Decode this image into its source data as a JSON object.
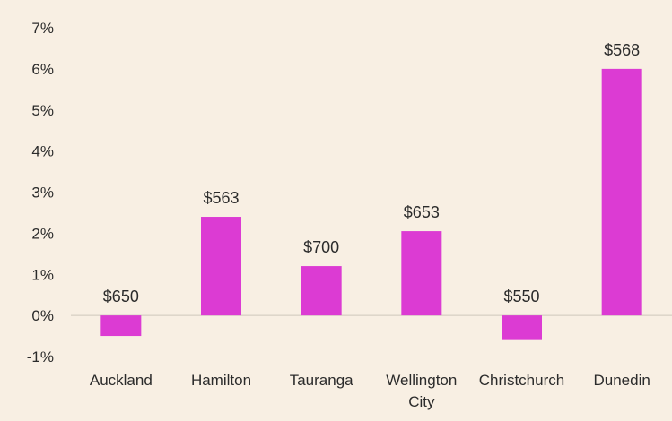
{
  "chart_data": {
    "type": "bar",
    "title": "",
    "xlabel": "",
    "ylabel": "",
    "categories": [
      [
        "Auckland"
      ],
      [
        "Hamilton"
      ],
      [
        "Tauranga"
      ],
      [
        "Wellington",
        "City"
      ],
      [
        "Christchurch"
      ],
      [
        "Dunedin"
      ]
    ],
    "values": [
      -0.5,
      2.4,
      1.2,
      2.05,
      -0.6,
      6.0
    ],
    "data_labels": [
      "$650",
      "$563",
      "$700",
      "$653",
      "$550",
      "$568"
    ],
    "ylim": [
      -1,
      7
    ],
    "yticks": [
      7,
      6,
      5,
      4,
      3,
      2,
      1,
      0,
      -1
    ],
    "ytick_labels": [
      "7%",
      "6%",
      "5%",
      "4%",
      "3%",
      "2%",
      "1%",
      "0%",
      "-1%"
    ],
    "grid": false,
    "legend": "none",
    "colors": {
      "bar": "#dc3bd3",
      "axis": "#cfc6bb",
      "background": "#f8efe3"
    }
  }
}
